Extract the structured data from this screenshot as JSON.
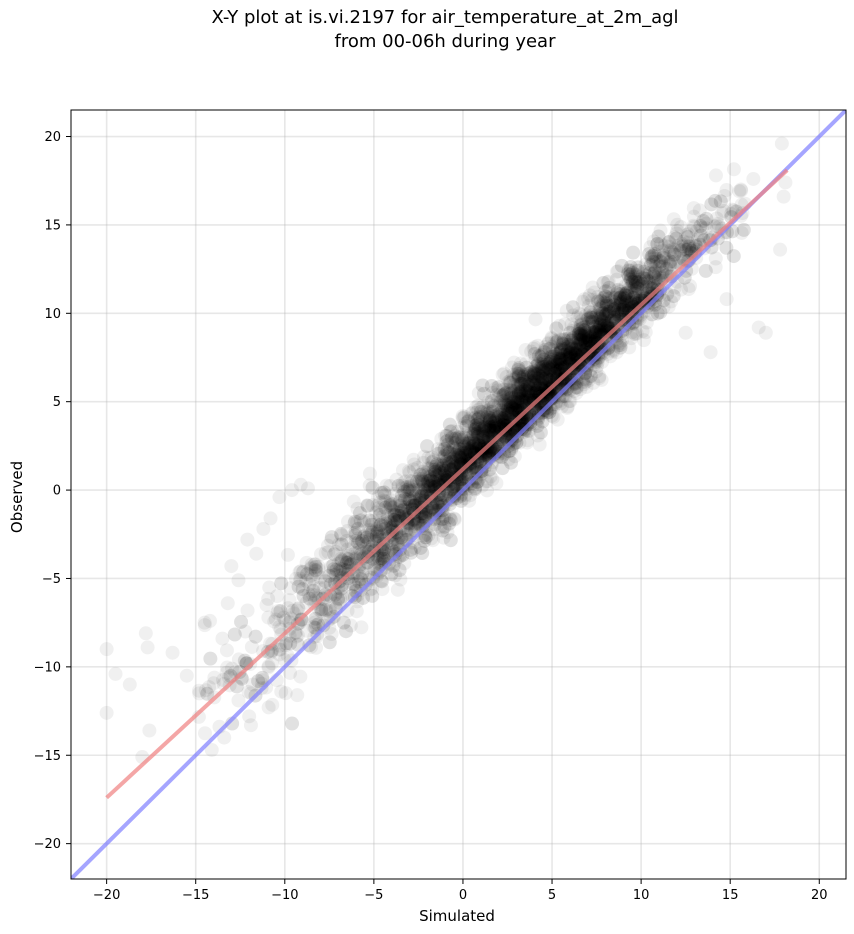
{
  "chart_data": {
    "type": "scatter",
    "title": "X-Y plot at is.vi.2197 for air_temperature_at_2m_agl",
    "subtitle": "from 00-06h during year",
    "xlabel": "Simulated",
    "ylabel": "Observed",
    "xlim": [
      -22,
      21.5
    ],
    "ylim": [
      -22,
      21.5
    ],
    "xticks": [
      -20,
      -15,
      -10,
      -5,
      0,
      5,
      10,
      15,
      20
    ],
    "yticks": [
      -20,
      -15,
      -10,
      -5,
      0,
      5,
      10,
      15,
      20
    ],
    "grid": true,
    "point_color": "#000000",
    "point_alpha": 0.06,
    "series": [
      {
        "type": "scatter",
        "points": [
          [
            -20.0,
            -9.0
          ],
          [
            -19.5,
            -10.4
          ],
          [
            -20.0,
            -12.6
          ],
          [
            -18.7,
            -11.0
          ],
          [
            -18.0,
            -15.1
          ],
          [
            -17.8,
            -8.1
          ],
          [
            -17.7,
            -8.9
          ],
          [
            -17.6,
            -13.6
          ],
          [
            -16.3,
            -9.2
          ],
          [
            -15.5,
            -10.5
          ],
          [
            -14.8,
            -11.5
          ],
          [
            -14.5,
            -7.5
          ],
          [
            -14.2,
            -7.4
          ],
          [
            -13.5,
            -8.4
          ],
          [
            -13.2,
            -6.4
          ],
          [
            -13.0,
            -4.3
          ],
          [
            -12.6,
            -5.1
          ],
          [
            -12.1,
            -2.8
          ],
          [
            -11.6,
            -3.6
          ],
          [
            -11.2,
            -2.2
          ],
          [
            -10.8,
            -1.6
          ],
          [
            -10.3,
            -0.4
          ],
          [
            -9.6,
            0.0
          ],
          [
            -9.1,
            0.3
          ],
          [
            -8.7,
            0.1
          ],
          [
            -10.2,
            -11.4
          ],
          [
            -9.3,
            -11.6
          ],
          [
            -12.0,
            -12.8
          ],
          [
            -13.4,
            -14.0
          ],
          [
            -14.1,
            -14.7
          ],
          [
            -12.6,
            -11.9
          ],
          [
            -11.9,
            -13.3
          ],
          [
            14.2,
            17.8
          ],
          [
            15.6,
            17.0
          ],
          [
            16.3,
            17.6
          ],
          [
            17.9,
            19.6
          ],
          [
            18.1,
            17.4
          ],
          [
            18.0,
            16.6
          ],
          [
            17.8,
            13.6
          ],
          [
            16.6,
            9.2
          ],
          [
            17.0,
            8.9
          ],
          [
            14.8,
            10.8
          ],
          [
            13.9,
            7.8
          ],
          [
            12.5,
            8.9
          ]
        ],
        "regression": [
          [
            -20.0,
            -17.4
          ],
          [
            18.2,
            18.1
          ]
        ],
        "regression_color": "#f08080",
        "identity": [
          [
            -22.0,
            -22.0
          ],
          [
            21.5,
            21.5
          ]
        ],
        "identity_color": "#7f7fff"
      }
    ]
  }
}
